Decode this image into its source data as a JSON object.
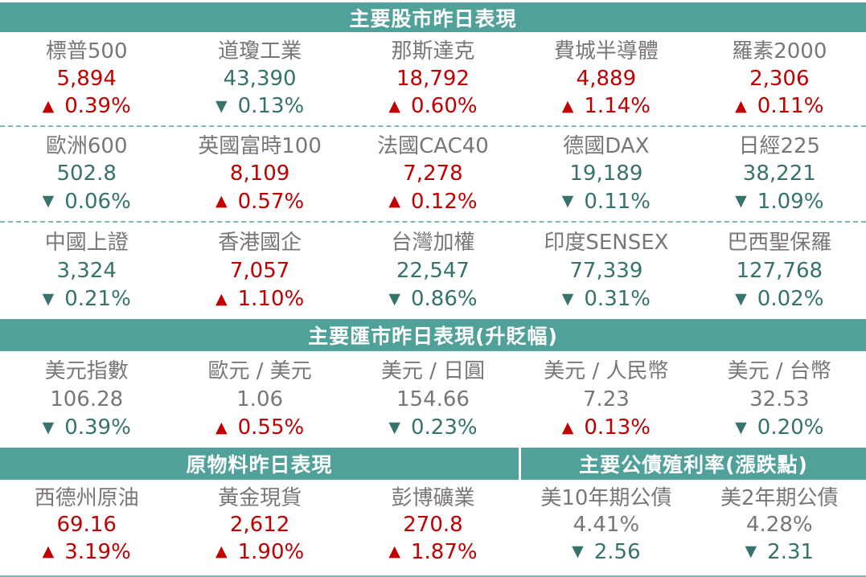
{
  "colors": {
    "band_bg": "#4FA19A",
    "band_text": "#FFFFFF",
    "up": "#C00000",
    "down": "#37736D",
    "label": "#7B7676",
    "dashed": "#7FB8B2",
    "page_bg": "#FFFFFF"
  },
  "sections": {
    "stocks": {
      "title": "主要股市昨日表現",
      "rows": [
        [
          {
            "name": "標普500",
            "value": "5,894",
            "dir": "up",
            "arrow": "▲",
            "change": "0.39%"
          },
          {
            "name": "道瓊工業",
            "value": "43,390",
            "dir": "down",
            "arrow": "▼",
            "change": "0.13%"
          },
          {
            "name": "那斯達克",
            "value": "18,792",
            "dir": "up",
            "arrow": "▲",
            "change": "0.60%"
          },
          {
            "name": "費城半導體",
            "value": "4,889",
            "dir": "up",
            "arrow": "▲",
            "change": "1.14%"
          },
          {
            "name": "羅素2000",
            "value": "2,306",
            "dir": "up",
            "arrow": "▲",
            "change": "0.11%"
          }
        ],
        [
          {
            "name": "歐洲600",
            "value": "502.8",
            "dir": "down",
            "arrow": "▼",
            "change": "0.06%"
          },
          {
            "name": "英國富時100",
            "value": "8,109",
            "dir": "up",
            "arrow": "▲",
            "change": "0.57%"
          },
          {
            "name": "法國CAC40",
            "value": "7,278",
            "dir": "up",
            "arrow": "▲",
            "change": "0.12%"
          },
          {
            "name": "德國DAX",
            "value": "19,189",
            "dir": "down",
            "arrow": "▼",
            "change": "0.11%"
          },
          {
            "name": "日經225",
            "value": "38,221",
            "dir": "down",
            "arrow": "▼",
            "change": "1.09%"
          }
        ],
        [
          {
            "name": "中國上證",
            "value": "3,324",
            "dir": "down",
            "arrow": "▼",
            "change": "0.21%"
          },
          {
            "name": "香港國企",
            "value": "7,057",
            "dir": "up",
            "arrow": "▲",
            "change": "1.10%"
          },
          {
            "name": "台灣加權",
            "value": "22,547",
            "dir": "down",
            "arrow": "▼",
            "change": "0.86%"
          },
          {
            "name": "印度SENSEX",
            "value": "77,339",
            "dir": "down",
            "arrow": "▼",
            "change": "0.31%"
          },
          {
            "name": "巴西聖保羅",
            "value": "127,768",
            "dir": "down",
            "arrow": "▼",
            "change": "0.02%"
          }
        ]
      ]
    },
    "fx": {
      "title": "主要匯市昨日表現(升貶幅)",
      "cells": [
        {
          "name": "美元指數",
          "value": "106.28",
          "dir": "down",
          "arrow": "▼",
          "change": "0.39%"
        },
        {
          "name": "歐元 / 美元",
          "value": "1.06",
          "dir": "up",
          "arrow": "▲",
          "change": "0.55%"
        },
        {
          "name": "美元 / 日圓",
          "value": "154.66",
          "dir": "down",
          "arrow": "▼",
          "change": "0.23%"
        },
        {
          "name": "美元 / 人民幣",
          "value": "7.23",
          "dir": "up",
          "arrow": "▲",
          "change": "0.13%"
        },
        {
          "name": "美元 / 台幣",
          "value": "32.53",
          "dir": "down",
          "arrow": "▼",
          "change": "0.20%"
        }
      ]
    },
    "commodities": {
      "title": "原物料昨日表現",
      "cells": [
        {
          "name": "西德州原油",
          "value": "69.16",
          "dir": "up",
          "arrow": "▲",
          "change": "3.19%"
        },
        {
          "name": "黃金現貨",
          "value": "2,612",
          "dir": "up",
          "arrow": "▲",
          "change": "1.90%"
        },
        {
          "name": "彭博礦業",
          "value": "270.8",
          "dir": "up",
          "arrow": "▲",
          "change": "1.87%"
        }
      ]
    },
    "bonds": {
      "title": "主要公債殖利率(漲跌點)",
      "cells": [
        {
          "name": "美10年期公債",
          "value": "4.41%",
          "dir": "down",
          "arrow": "▼",
          "change": "2.56"
        },
        {
          "name": "美2年期公債",
          "value": "4.28%",
          "dir": "down",
          "arrow": "▼",
          "change": "2.31"
        }
      ]
    }
  }
}
